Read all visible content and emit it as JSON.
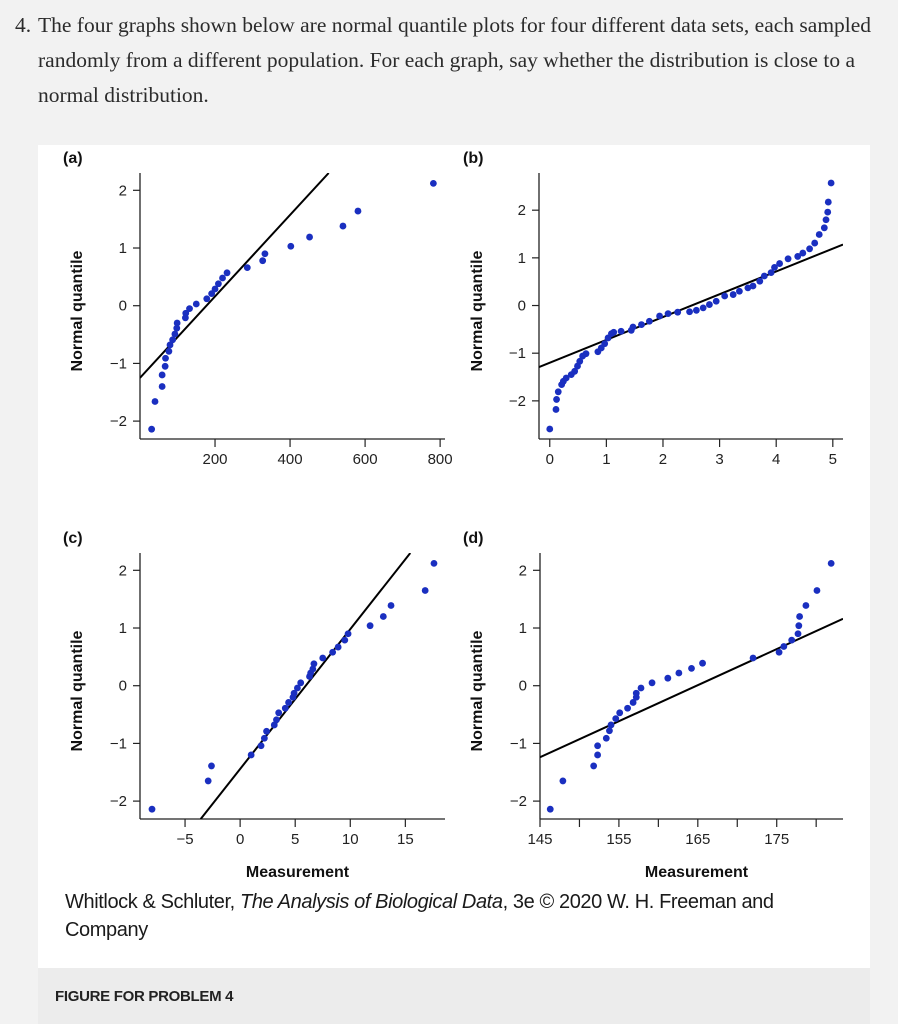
{
  "question": {
    "number": "4.",
    "text": "The four graphs shown below are normal quantile plots for four different data sets, each sampled randomly from a different population. For each graph, say whether the distribution is close to a normal distribution."
  },
  "caption": {
    "authors": "Whitlock & Schluter, ",
    "title": "The Analysis of Biological Data",
    "rest": ", 3e © 2020 W. H. Freeman and Company"
  },
  "figure_label": "FIGURE FOR PROBLEM 4",
  "colors": {
    "points": "#1a2fc0",
    "line": "#000000"
  },
  "chart_data": [
    {
      "type": "scatter",
      "panel_label": "(a)",
      "xlabel": "",
      "ylabel": "Normal quantile",
      "xlim": [
        0,
        813
      ],
      "ylim": [
        -2.31,
        2.3
      ],
      "xticks": [
        200,
        400,
        600,
        800
      ],
      "yticks": [
        -2,
        -1,
        0,
        1,
        2
      ],
      "reference_line": [
        [
          0,
          -1.25
        ],
        [
          503,
          2.3
        ]
      ],
      "points": [
        [
          31,
          -2.14
        ],
        [
          40,
          -1.66
        ],
        [
          59,
          -1.4
        ],
        [
          59,
          -1.2
        ],
        [
          67,
          -1.05
        ],
        [
          68,
          -0.91
        ],
        [
          77,
          -0.79
        ],
        [
          80,
          -0.68
        ],
        [
          87,
          -0.59
        ],
        [
          93,
          -0.49
        ],
        [
          98,
          -0.39
        ],
        [
          99,
          -0.3
        ],
        [
          121,
          -0.21
        ],
        [
          122,
          -0.13
        ],
        [
          132,
          -0.05
        ],
        [
          150,
          0.03
        ],
        [
          178,
          0.12
        ],
        [
          191,
          0.21
        ],
        [
          200,
          0.29
        ],
        [
          209,
          0.38
        ],
        [
          220,
          0.48
        ],
        [
          232,
          0.57
        ],
        [
          286,
          0.66
        ],
        [
          327,
          0.78
        ],
        [
          333,
          0.9
        ],
        [
          402,
          1.03
        ],
        [
          452,
          1.19
        ],
        [
          541,
          1.38
        ],
        [
          581,
          1.64
        ],
        [
          782,
          2.12
        ]
      ]
    },
    {
      "type": "scatter",
      "panel_label": "(b)",
      "xlabel": "",
      "ylabel": "Normal quantile",
      "xlim": [
        -0.19,
        5.18
      ],
      "ylim": [
        -2.8,
        2.78
      ],
      "xticks": [
        0,
        1,
        2,
        3,
        4,
        5
      ],
      "yticks": [
        -2,
        -1,
        0,
        1,
        2
      ],
      "reference_line": [
        [
          -0.19,
          -1.29
        ],
        [
          5.18,
          1.28
        ]
      ],
      "points": [
        [
          0,
          -2.59
        ],
        [
          0.11,
          -2.18
        ],
        [
          0.12,
          -1.97
        ],
        [
          0.15,
          -1.81
        ],
        [
          0.21,
          -1.66
        ],
        [
          0.24,
          -1.59
        ],
        [
          0.29,
          -1.52
        ],
        [
          0.38,
          -1.45
        ],
        [
          0.44,
          -1.38
        ],
        [
          0.49,
          -1.27
        ],
        [
          0.53,
          -1.17
        ],
        [
          0.58,
          -1.06
        ],
        [
          0.64,
          -1.01
        ],
        [
          0.85,
          -0.97
        ],
        [
          0.91,
          -0.89
        ],
        [
          0.97,
          -0.8
        ],
        [
          1.03,
          -0.68
        ],
        [
          1.09,
          -0.59
        ],
        [
          1.13,
          -0.56
        ],
        [
          1.26,
          -0.54
        ],
        [
          1.44,
          -0.52
        ],
        [
          1.47,
          -0.45
        ],
        [
          1.62,
          -0.4
        ],
        [
          1.76,
          -0.33
        ],
        [
          1.94,
          -0.22
        ],
        [
          2.09,
          -0.17
        ],
        [
          2.26,
          -0.14
        ],
        [
          2.47,
          -0.13
        ],
        [
          2.59,
          -0.1
        ],
        [
          2.71,
          -0.05
        ],
        [
          2.82,
          0.02
        ],
        [
          2.94,
          0.09
        ],
        [
          3.09,
          0.2
        ],
        [
          3.24,
          0.23
        ],
        [
          3.35,
          0.3
        ],
        [
          3.5,
          0.37
        ],
        [
          3.59,
          0.41
        ],
        [
          3.71,
          0.51
        ],
        [
          3.79,
          0.62
        ],
        [
          3.91,
          0.69
        ],
        [
          3.97,
          0.8
        ],
        [
          4.06,
          0.88
        ],
        [
          4.21,
          0.98
        ],
        [
          4.38,
          1.03
        ],
        [
          4.47,
          1.1
        ],
        [
          4.59,
          1.19
        ],
        [
          4.68,
          1.31
        ],
        [
          4.76,
          1.49
        ],
        [
          4.85,
          1.63
        ],
        [
          4.88,
          1.8
        ],
        [
          4.91,
          1.96
        ],
        [
          4.92,
          2.17
        ],
        [
          4.97,
          2.57
        ]
      ]
    },
    {
      "type": "scatter",
      "panel_label": "(c)",
      "xlabel": "Measurement",
      "ylabel": "Normal quantile",
      "xlim": [
        -9.09,
        18.6
      ],
      "ylim": [
        -2.31,
        2.3
      ],
      "xticks": [
        -5,
        0,
        5,
        10,
        15
      ],
      "yticks": [
        -2,
        -1,
        0,
        1,
        2
      ],
      "reference_line": [
        [
          -3.58,
          -2.31
        ],
        [
          15.45,
          2.3
        ]
      ],
      "points": [
        [
          -8.0,
          -2.14
        ],
        [
          -2.9,
          -1.65
        ],
        [
          -2.6,
          -1.39
        ],
        [
          1.0,
          -1.2
        ],
        [
          1.9,
          -1.04
        ],
        [
          2.2,
          -0.91
        ],
        [
          2.4,
          -0.79
        ],
        [
          3.1,
          -0.68
        ],
        [
          3.3,
          -0.59
        ],
        [
          3.5,
          -0.47
        ],
        [
          4.1,
          -0.39
        ],
        [
          4.4,
          -0.29
        ],
        [
          4.8,
          -0.2
        ],
        [
          4.9,
          -0.13
        ],
        [
          5.2,
          -0.04
        ],
        [
          5.5,
          0.05
        ],
        [
          6.3,
          0.16
        ],
        [
          6.4,
          0.22
        ],
        [
          6.6,
          0.29
        ],
        [
          6.7,
          0.38
        ],
        [
          7.5,
          0.48
        ],
        [
          8.4,
          0.58
        ],
        [
          8.9,
          0.67
        ],
        [
          9.5,
          0.79
        ],
        [
          9.8,
          0.9
        ],
        [
          11.8,
          1.04
        ],
        [
          13.0,
          1.2
        ],
        [
          13.7,
          1.39
        ],
        [
          16.8,
          1.65
        ],
        [
          17.6,
          2.12
        ]
      ]
    },
    {
      "type": "scatter",
      "panel_label": "(d)",
      "xlabel": "Measurement",
      "ylabel": "Normal quantile",
      "xlim": [
        145,
        183.4
      ],
      "ylim": [
        -2.31,
        2.3
      ],
      "xticks": [
        145,
        150,
        155,
        160,
        165,
        170,
        175,
        180
      ],
      "xticklabels": [
        "145",
        "",
        "155",
        "",
        "165",
        "",
        "175",
        ""
      ],
      "yticks": [
        -2,
        -1,
        0,
        1,
        2
      ],
      "reference_line": [
        [
          145,
          -1.24
        ],
        [
          183.4,
          1.16
        ]
      ],
      "points": [
        [
          146.3,
          -2.14
        ],
        [
          147.9,
          -1.65
        ],
        [
          151.8,
          -1.39
        ],
        [
          152.3,
          -1.2
        ],
        [
          152.3,
          -1.04
        ],
        [
          153.4,
          -0.91
        ],
        [
          153.8,
          -0.78
        ],
        [
          154.0,
          -0.68
        ],
        [
          154.6,
          -0.57
        ],
        [
          155.1,
          -0.47
        ],
        [
          156.1,
          -0.39
        ],
        [
          156.8,
          -0.29
        ],
        [
          157.2,
          -0.2
        ],
        [
          157.2,
          -0.13
        ],
        [
          157.8,
          -0.04
        ],
        [
          159.2,
          0.05
        ],
        [
          161.2,
          0.13
        ],
        [
          162.6,
          0.22
        ],
        [
          164.2,
          0.3
        ],
        [
          165.6,
          0.39
        ],
        [
          172.0,
          0.48
        ],
        [
          175.3,
          0.58
        ],
        [
          175.9,
          0.68
        ],
        [
          176.9,
          0.79
        ],
        [
          177.7,
          0.9
        ],
        [
          177.8,
          1.04
        ],
        [
          177.9,
          1.2
        ],
        [
          178.7,
          1.39
        ],
        [
          180.1,
          1.65
        ],
        [
          181.9,
          2.12
        ]
      ]
    }
  ]
}
